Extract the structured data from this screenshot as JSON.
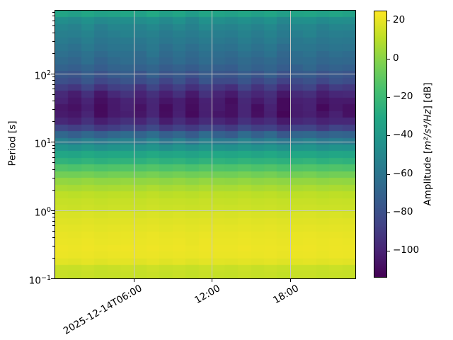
{
  "figure": {
    "background": "#ffffff"
  },
  "axes": {
    "ylabel": "Period [s]",
    "y_scale": "log",
    "y_range_log10_s": [
      -1,
      2.92
    ],
    "x_range_hours": [
      0,
      23
    ],
    "grid_color": "#c9c9c6",
    "spine_color": "#000000",
    "y_ticks": [
      {
        "period_s": 100,
        "base": "10",
        "exp": "2"
      },
      {
        "period_s": 10,
        "base": "10",
        "exp": "1"
      },
      {
        "period_s": 1,
        "base": "10",
        "exp": "0"
      },
      {
        "period_s": 0.1,
        "base": "10",
        "exp": "−1"
      }
    ],
    "x_ticks": [
      {
        "hour": 6,
        "label": "2025-12-14T06:00"
      },
      {
        "hour": 12,
        "label": "12:00"
      },
      {
        "hour": 18,
        "label": "18:00"
      }
    ]
  },
  "colorbar": {
    "label_prefix": "Amplitude [",
    "label_math": "m²/s⁴/Hz",
    "label_suffix": "] [dB]",
    "vmin": -114,
    "vmax": 25,
    "colormap": "viridis",
    "stops": [
      "#440154",
      "#482475",
      "#414487",
      "#355f8d",
      "#2a788e",
      "#21918c",
      "#22a884",
      "#44bf70",
      "#7ad151",
      "#bddf26",
      "#fde725"
    ],
    "ticks": [
      {
        "value": 20,
        "label": "20"
      },
      {
        "value": 0,
        "label": "0"
      },
      {
        "value": -20,
        "label": "−20"
      },
      {
        "value": -40,
        "label": "−40"
      },
      {
        "value": -60,
        "label": "−60"
      },
      {
        "value": -80,
        "label": "−80"
      },
      {
        "value": -100,
        "label": "−100"
      }
    ]
  },
  "chart_data": {
    "type": "heatmap",
    "title": "",
    "xlabel": "",
    "ylabel": "Period [s]",
    "colorbar_label": "Amplitude [m²/s⁴/Hz] [dB]",
    "date": "2025-12-14",
    "x_start": "2025-12-14T00:00",
    "x_end": "2025-12-14T23:00",
    "n_time_bins": 23,
    "time_bin_hours": 1,
    "period_range_s": [
      0.1,
      832
    ],
    "clim_db": [
      -114,
      25
    ],
    "rows_note": "each row = [center period (s), mean amplitude (dB), column variability scale (dB)] ordered from longest to shortest period",
    "rows": [
      [
        743,
        -34,
        2.0
      ],
      [
        593,
        -47,
        2.2
      ],
      [
        473,
        -52,
        2.0
      ],
      [
        377,
        -55,
        1.8
      ],
      [
        301,
        -58,
        1.8
      ],
      [
        240,
        -61,
        2.0
      ],
      [
        192,
        -64,
        2.2
      ],
      [
        153,
        -67,
        2.2
      ],
      [
        122,
        -71,
        2.4
      ],
      [
        97.5,
        -76,
        3.0
      ],
      [
        77.8,
        -82,
        3.5
      ],
      [
        62.1,
        -91,
        4.0
      ],
      [
        49.5,
        -99,
        4.5
      ],
      [
        39.5,
        -104,
        4.5
      ],
      [
        31.5,
        -106,
        4.0
      ],
      [
        25.2,
        -105,
        4.0
      ],
      [
        20.1,
        -99,
        3.5
      ],
      [
        16.0,
        -88,
        3.0
      ],
      [
        12.8,
        -70,
        3.5
      ],
      [
        10.2,
        -56,
        3.0
      ],
      [
        8.15,
        -44,
        1.5
      ],
      [
        6.5,
        -32,
        1.2
      ],
      [
        5.19,
        -25,
        1.0
      ],
      [
        4.14,
        -14,
        0.8
      ],
      [
        3.3,
        -5,
        0.8
      ],
      [
        2.64,
        2,
        0.6
      ],
      [
        2.1,
        7,
        0.5
      ],
      [
        1.68,
        11,
        0.4
      ],
      [
        1.34,
        13,
        0.4
      ],
      [
        1.07,
        14,
        0.3
      ],
      [
        0.853,
        17,
        0.3
      ],
      [
        0.681,
        18.5,
        0.3
      ],
      [
        0.543,
        19.5,
        0.3
      ],
      [
        0.433,
        20.5,
        0.3
      ],
      [
        0.346,
        21,
        0.3
      ],
      [
        0.276,
        21.5,
        0.3
      ],
      [
        0.22,
        21,
        0.3
      ],
      [
        0.176,
        19,
        0.5
      ],
      [
        0.14,
        13.5,
        0.5
      ],
      [
        0.112,
        13,
        0.5
      ]
    ],
    "column_offsets": [
      0.4,
      -0.6,
      1.3,
      -1.0,
      0.2,
      0.9,
      -0.4,
      1.4,
      -0.9,
      0.6,
      -1.3,
      1.0,
      0.1,
      -0.7,
      1.2,
      -0.5,
      0.8,
      -1.4,
      0.3,
      1.1,
      -0.8,
      0.5,
      -0.2
    ],
    "texture_noise_db": 0.5
  }
}
